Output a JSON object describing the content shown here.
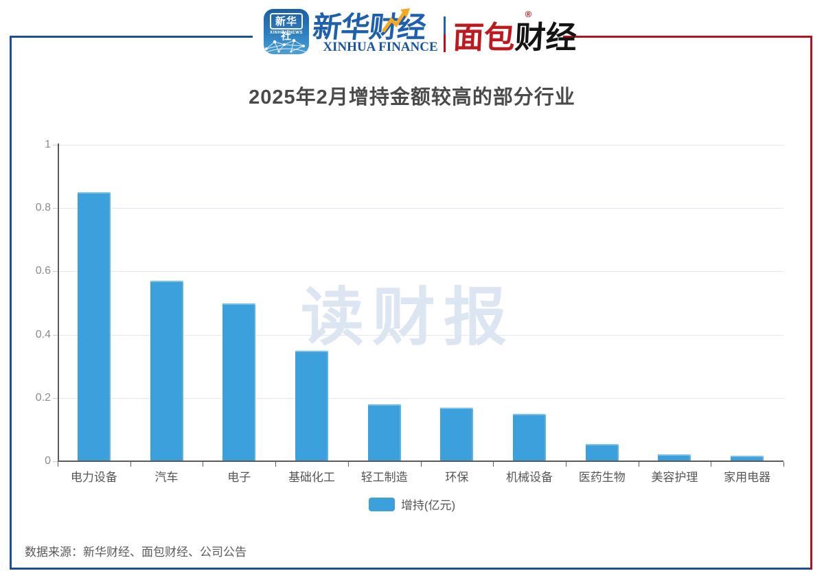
{
  "header": {
    "xinhua_app": {
      "name_cn": "新华社",
      "name_en": "XINHUA NEWS"
    },
    "xinhua_finance": {
      "name_cn": "新华财经",
      "name_en": "XINHUA FINANCE"
    },
    "mianbao_finance": {
      "part_red": "面包",
      "part_black": "财经",
      "registered_mark": "®"
    }
  },
  "title": "2025年2月增持金额较高的部分行业",
  "watermark": "读财报",
  "legend": {
    "label": "增持(亿元)"
  },
  "footer": {
    "source_text": "数据来源：新华财经、面包财经、公司公告"
  },
  "colors": {
    "bar": "#3ba0db",
    "frame_blue": "#1b4e96",
    "frame_red": "#b5121b",
    "brand_blue": "#17549f",
    "brand_red": "#bf1920",
    "gridline": "#e2e9f4",
    "watermark": "#dce6f2",
    "axis": "#5b5b5b"
  },
  "chart_data": {
    "type": "bar",
    "title": "2025年2月增持金额较高的部分行业",
    "categories": [
      "电力设备",
      "汽车",
      "电子",
      "基础化工",
      "轻工制造",
      "环保",
      "机械设备",
      "医药生物",
      "美容护理",
      "家用电器"
    ],
    "values": [
      0.85,
      0.57,
      0.5,
      0.35,
      0.18,
      0.17,
      0.15,
      0.055,
      0.022,
      0.018
    ],
    "series_name": "增持(亿元)",
    "xlabel": "",
    "ylabel": "",
    "ylim": [
      0,
      1
    ],
    "yticks": [
      0,
      0.2,
      0.4,
      0.6,
      0.8,
      1
    ],
    "ytick_labels": [
      "0",
      "0.2",
      "0.4",
      "0.6",
      "0.8",
      "1"
    ],
    "grid": true,
    "legend_position": "bottom"
  }
}
